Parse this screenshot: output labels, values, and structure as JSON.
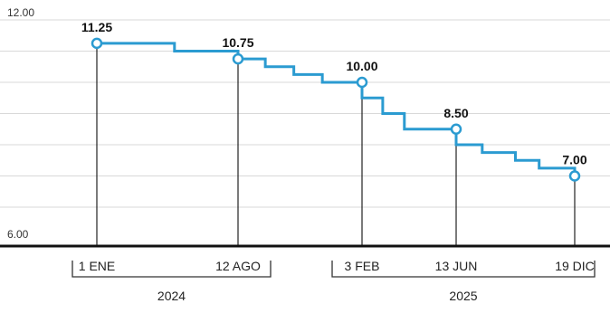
{
  "chart_data": {
    "type": "line",
    "ylim": [
      6.0,
      12.0
    ],
    "y_ticks": [
      "12.00",
      "6.00"
    ],
    "gridlines": [
      6.0,
      7.0,
      8.0,
      9.0,
      10.0,
      11.0,
      12.0
    ],
    "step_path": [
      {
        "pos": 0.0,
        "value": 11.25
      },
      {
        "pos": 0.55,
        "value": 11.0
      },
      {
        "pos": 1.0,
        "value": 10.75
      },
      {
        "pos": 1.22,
        "value": 10.5
      },
      {
        "pos": 1.45,
        "value": 10.25
      },
      {
        "pos": 1.68,
        "value": 10.0
      },
      {
        "pos": 2.0,
        "value": 10.0
      },
      {
        "pos": 2.0,
        "value": 9.5
      },
      {
        "pos": 2.22,
        "value": 9.0
      },
      {
        "pos": 2.45,
        "value": 8.5
      },
      {
        "pos": 3.0,
        "value": 8.5
      },
      {
        "pos": 3.0,
        "value": 8.0
      },
      {
        "pos": 3.22,
        "value": 7.75
      },
      {
        "pos": 3.5,
        "value": 7.5
      },
      {
        "pos": 3.7,
        "value": 7.25
      },
      {
        "pos": 4.0,
        "value": 7.0
      }
    ],
    "markers": [
      {
        "pos": 0,
        "date": "1 ENE",
        "value": 11.25,
        "label": "11.25"
      },
      {
        "pos": 1,
        "date": "12 AGO",
        "value": 10.75,
        "label": "10.75"
      },
      {
        "pos": 2,
        "date": "3 FEB",
        "value": 10.0,
        "label": "10.00"
      },
      {
        "pos": 3,
        "date": "13 JUN",
        "value": 8.5,
        "label": "8.50"
      },
      {
        "pos": 4,
        "date": "19 DIC",
        "value": 7.0,
        "label": "7.00"
      }
    ],
    "year_groups": [
      {
        "year": "2024",
        "from": 0,
        "to": 1
      },
      {
        "year": "2025",
        "from": 2,
        "to": 4
      }
    ]
  },
  "colors": {
    "line": "#2b9bd1",
    "grid": "#d9d9d9",
    "axis": "#111111",
    "guide": "#222222"
  }
}
